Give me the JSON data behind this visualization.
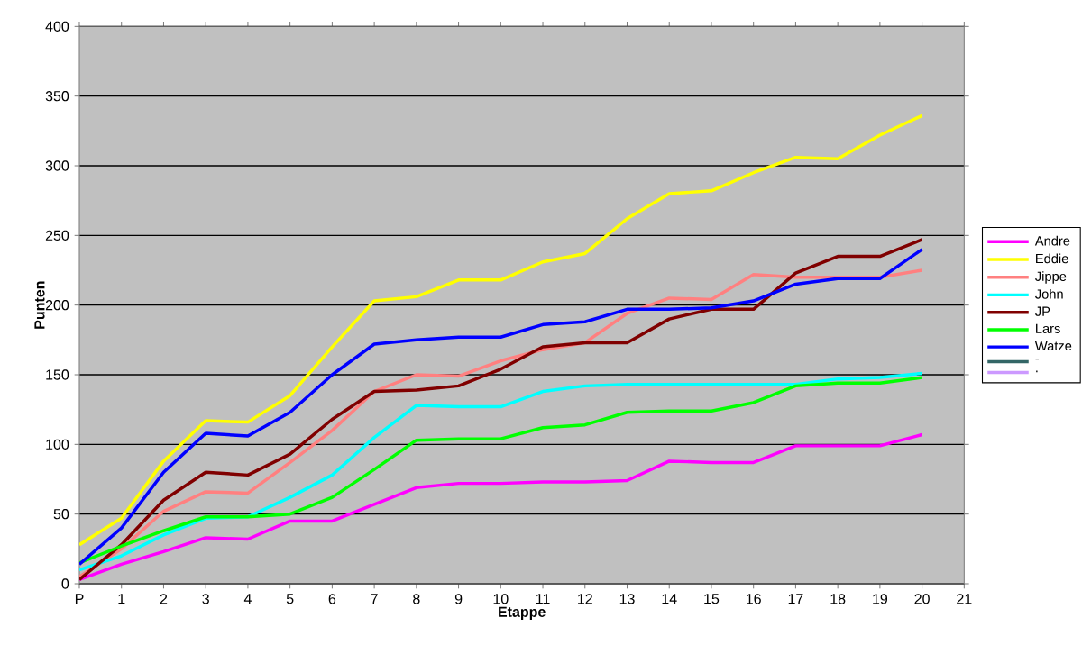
{
  "chart_data": {
    "type": "line",
    "xlabel": "Etappe",
    "ylabel": "Punten",
    "x": [
      0,
      1,
      2,
      3,
      4,
      5,
      6,
      7,
      8,
      9,
      10,
      11,
      12,
      13,
      14,
      15,
      16,
      17,
      18,
      19,
      20
    ],
    "xlim": [
      0,
      21
    ],
    "ylim": [
      0,
      400
    ],
    "xticks": [
      {
        "value": 0,
        "label": "P"
      },
      1,
      2,
      3,
      4,
      5,
      6,
      7,
      8,
      9,
      10,
      11,
      12,
      13,
      14,
      15,
      16,
      17,
      18,
      19,
      20,
      21
    ],
    "yticks": [
      0,
      50,
      100,
      150,
      200,
      250,
      300,
      350,
      400
    ],
    "grid": "y",
    "legend": "right",
    "marker": "none",
    "line_style": "solid",
    "series": [
      {
        "name": "Andre",
        "color": "#ff00ff",
        "values": [
          3,
          14,
          23,
          33,
          32,
          45,
          45,
          57,
          69,
          72,
          72,
          73,
          73,
          74,
          88,
          87,
          87,
          99,
          99,
          99,
          107
        ]
      },
      {
        "name": "Eddie",
        "color": "#ffff00",
        "values": [
          28,
          47,
          88,
          117,
          116,
          135,
          170,
          203,
          206,
          218,
          218,
          231,
          237,
          262,
          280,
          282,
          295,
          306,
          305,
          322,
          336
        ]
      },
      {
        "name": "Jippe",
        "color": "#ff8080",
        "values": [
          5,
          25,
          52,
          66,
          65,
          87,
          110,
          138,
          150,
          149,
          160,
          168,
          173,
          194,
          205,
          204,
          222,
          220,
          220,
          220,
          225
        ]
      },
      {
        "name": "John",
        "color": "#00ffff",
        "values": [
          10,
          20,
          35,
          47,
          48,
          62,
          78,
          105,
          128,
          127,
          127,
          138,
          142,
          143,
          143,
          143,
          143,
          143,
          147,
          148,
          151
        ]
      },
      {
        "name": "JP",
        "color": "#800000",
        "values": [
          3,
          28,
          60,
          80,
          78,
          93,
          118,
          138,
          139,
          142,
          154,
          170,
          173,
          173,
          190,
          197,
          197,
          223,
          235,
          235,
          247
        ]
      },
      {
        "name": "Lars",
        "color": "#00ff00",
        "values": [
          15,
          27,
          38,
          48,
          48,
          50,
          62,
          82,
          103,
          104,
          104,
          112,
          114,
          123,
          124,
          124,
          130,
          142,
          144,
          144,
          148
        ]
      },
      {
        "name": "Watze",
        "color": "#0000ff",
        "values": [
          14,
          40,
          80,
          108,
          106,
          123,
          150,
          172,
          175,
          177,
          177,
          186,
          188,
          197,
          197,
          198,
          203,
          215,
          219,
          219,
          240
        ]
      },
      {
        "name": "-",
        "color": "#336666",
        "values": [
          null,
          null,
          null,
          null,
          null,
          null,
          null,
          null,
          null,
          null,
          null,
          null,
          null,
          null,
          null,
          null,
          null,
          null,
          null,
          null,
          null
        ]
      },
      {
        "name": ".",
        "color": "#cc99ff",
        "values": [
          null,
          null,
          null,
          null,
          null,
          null,
          null,
          null,
          null,
          null,
          null,
          null,
          null,
          null,
          null,
          null,
          null,
          null,
          null,
          null,
          null
        ]
      }
    ]
  }
}
